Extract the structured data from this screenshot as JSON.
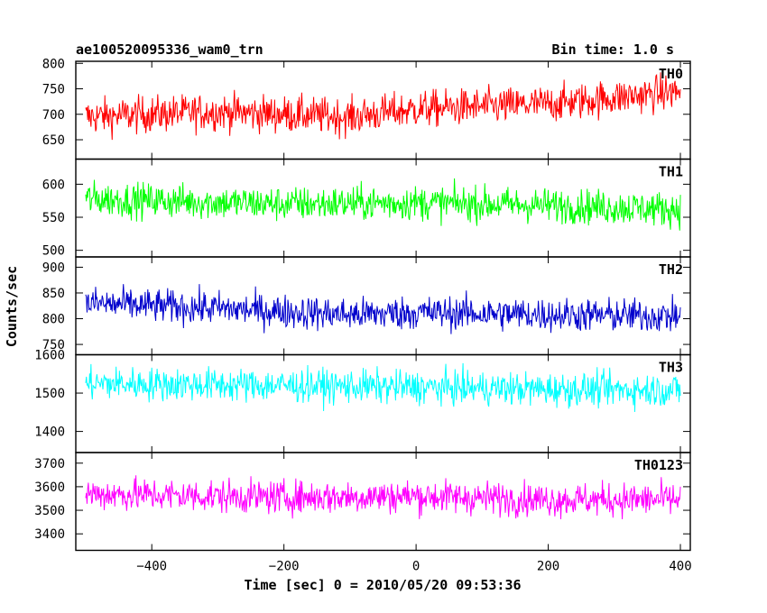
{
  "chart_data": {
    "type": "line",
    "title": "ae100520095336_wam0_trn",
    "bin_time_label": "Bin time: 1.0 s",
    "xlabel": "Time [sec] 0 = 2010/05/20 09:53:36",
    "ylabel": "Counts/sec",
    "xlim": [
      -515,
      415
    ],
    "x_ticks": [
      -400,
      -200,
      0,
      200,
      400
    ],
    "x_tick_labels": [
      "−400",
      "−200",
      "0",
      "200",
      "400"
    ],
    "x_start": -500,
    "x_end": 400,
    "panels": [
      {
        "name": "TH0",
        "color": "#ff0000",
        "ylim": [
          612,
          804
        ],
        "y_ticks": [
          650,
          700,
          750,
          800
        ],
        "trend": [
          [
            -500,
            695
          ],
          [
            -300,
            705
          ],
          [
            -100,
            695
          ],
          [
            0,
            710
          ],
          [
            200,
            720
          ],
          [
            400,
            745
          ]
        ],
        "noise": 33
      },
      {
        "name": "TH1",
        "color": "#00ff00",
        "ylim": [
          490,
          638
        ],
        "y_ticks": [
          500,
          550,
          600
        ],
        "trend": [
          [
            -500,
            578
          ],
          [
            -200,
            570
          ],
          [
            0,
            572
          ],
          [
            200,
            568
          ],
          [
            400,
            562
          ]
        ],
        "noise": 24
      },
      {
        "name": "TH2",
        "color": "#0000cc",
        "ylim": [
          730,
          920
        ],
        "y_ticks": [
          750,
          800,
          850,
          900
        ],
        "trend": [
          [
            -500,
            830
          ],
          [
            -300,
            820
          ],
          [
            -100,
            808
          ],
          [
            0,
            812
          ],
          [
            200,
            808
          ],
          [
            400,
            805
          ]
        ],
        "noise": 30
      },
      {
        "name": "TH3",
        "color": "#00ffff",
        "ylim": [
          1345,
          1600
        ],
        "y_ticks": [
          1400,
          1500,
          1600
        ],
        "trend": [
          [
            -500,
            1525
          ],
          [
            -200,
            1520
          ],
          [
            0,
            1515
          ],
          [
            200,
            1510
          ],
          [
            400,
            1508
          ]
        ],
        "noise": 40
      },
      {
        "name": "TH0123",
        "color": "#ff00ff",
        "ylim": [
          3330,
          3745
        ],
        "y_ticks": [
          3400,
          3500,
          3600,
          3700
        ],
        "trend": [
          [
            -500,
            3570
          ],
          [
            -200,
            3555
          ],
          [
            0,
            3560
          ],
          [
            200,
            3545
          ],
          [
            400,
            3545
          ]
        ],
        "noise": 65
      }
    ]
  }
}
